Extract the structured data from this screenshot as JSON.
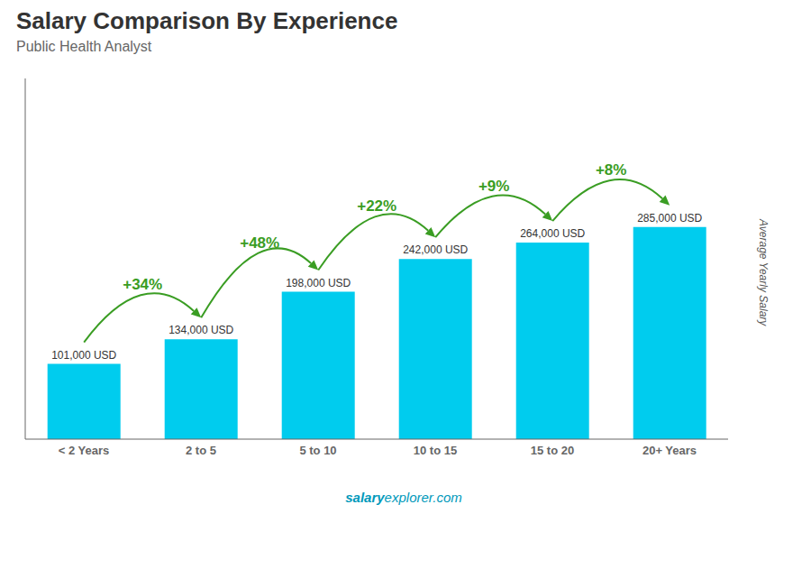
{
  "chart_data": {
    "type": "bar",
    "title": "Salary Comparison By Experience",
    "subtitle": "Public Health Analyst",
    "ylabel": "Average Yearly Salary",
    "categories": [
      "< 2 Years",
      "2 to 5",
      "5 to 10",
      "10 to 15",
      "15 to 20",
      "20+ Years"
    ],
    "values": [
      101000,
      134000,
      198000,
      242000,
      264000,
      285000
    ],
    "value_labels": [
      "101,000 USD",
      "134,000 USD",
      "198,000 USD",
      "242,000 USD",
      "264,000 USD",
      "285,000 USD"
    ],
    "data_labels": true,
    "color": "#00ccee",
    "ylim": [
      0,
      484500
    ],
    "tick_labels": "x",
    "grid": false,
    "annotations": [
      "+34%",
      "+48%",
      "+22%",
      "+9%",
      "+8%"
    ],
    "watermark": [
      "salary",
      "explorer.com"
    ]
  }
}
